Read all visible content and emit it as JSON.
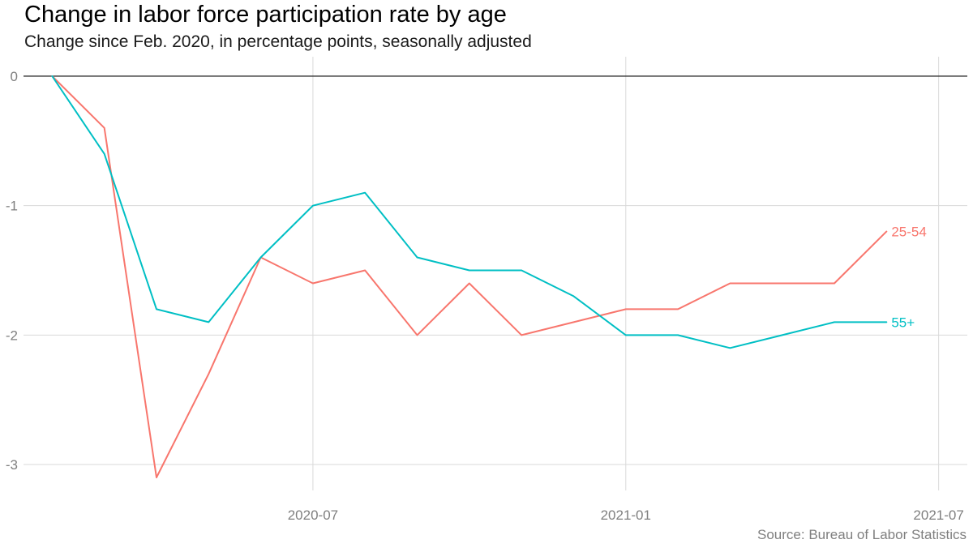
{
  "chart_data": {
    "type": "line",
    "title": "Change in labor force participation rate by age",
    "subtitle": "Change since Feb. 2020, in percentage points, seasonally adjusted",
    "caption": "Source: Bureau of Labor Statistics",
    "xlabel": "",
    "ylabel": "",
    "x": [
      "2020-02",
      "2020-03",
      "2020-04",
      "2020-05",
      "2020-06",
      "2020-07",
      "2020-08",
      "2020-09",
      "2020-10",
      "2020-11",
      "2020-12",
      "2021-01",
      "2021-02",
      "2021-03",
      "2021-04",
      "2021-05",
      "2021-06"
    ],
    "x_ticks": [
      "2020-07",
      "2021-01",
      "2021-07"
    ],
    "y_ticks": [
      0,
      -1,
      -2,
      -3
    ],
    "xlim": [
      "2020-02",
      "2021-07"
    ],
    "ylim": [
      -3.2,
      0.15
    ],
    "grid": true,
    "zero_line": true,
    "legend": "direct labels at line ends",
    "series": [
      {
        "name": "25-54",
        "color": "#F8766D",
        "values": [
          0,
          -0.4,
          -3.1,
          -2.3,
          -1.4,
          -1.6,
          -1.5,
          -2.0,
          -1.6,
          -2.0,
          -1.9,
          -1.8,
          -1.8,
          -1.6,
          -1.6,
          -1.6,
          -1.2
        ]
      },
      {
        "name": "55+",
        "color": "#00BFC4",
        "values": [
          0,
          -0.6,
          -1.8,
          -1.9,
          -1.4,
          -1.0,
          -0.9,
          -1.4,
          -1.5,
          -1.5,
          -1.7,
          -2.0,
          -2.0,
          -2.1,
          -2.0,
          -1.9,
          -1.9
        ]
      }
    ]
  }
}
